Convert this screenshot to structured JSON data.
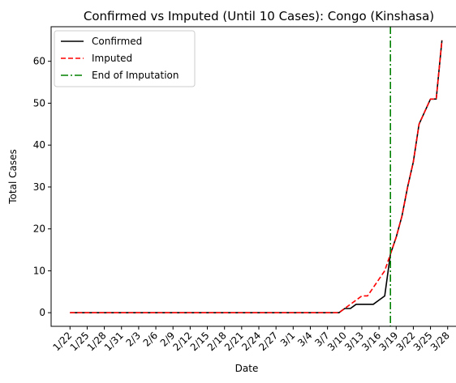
{
  "chart_data": {
    "type": "line",
    "title": "Confirmed vs Imputed (Until 10 Cases): Congo (Kinshasa)",
    "xlabel": "Date",
    "ylabel": "Total Cases",
    "x_tick_labels": [
      "1/22",
      "1/25",
      "1/28",
      "1/31",
      "2/3",
      "2/6",
      "2/9",
      "2/12",
      "2/15",
      "2/18",
      "2/21",
      "2/24",
      "2/27",
      "3/1",
      "3/4",
      "3/7",
      "3/10",
      "3/13",
      "3/16",
      "3/19",
      "3/22",
      "3/25",
      "3/28"
    ],
    "y_ticks": [
      0,
      10,
      20,
      30,
      40,
      50,
      60
    ],
    "x_start_date": "2020-01-22",
    "x_end_date": "2020-03-28",
    "ylim": [
      -3.25,
      68.25
    ],
    "grid": false,
    "legend_position": "upper left",
    "series": [
      {
        "name": "Confirmed",
        "color": "#000000",
        "style": "solid",
        "points": [
          [
            "3/9",
            0
          ],
          [
            "3/10",
            1
          ],
          [
            "3/11",
            1
          ],
          [
            "3/12",
            2
          ],
          [
            "3/13",
            2
          ],
          [
            "3/14",
            2
          ],
          [
            "3/15",
            2
          ],
          [
            "3/16",
            3
          ],
          [
            "3/17",
            4
          ],
          [
            "3/18",
            14
          ],
          [
            "3/19",
            18
          ],
          [
            "3/20",
            23
          ],
          [
            "3/21",
            30
          ],
          [
            "3/22",
            36
          ],
          [
            "3/23",
            45
          ],
          [
            "3/24",
            48
          ],
          [
            "3/25",
            51
          ],
          [
            "3/26",
            51
          ],
          [
            "3/27",
            65
          ]
        ]
      },
      {
        "name": "Imputed",
        "color": "#ff0000",
        "style": "dashed",
        "points": [
          [
            "3/9",
            0
          ],
          [
            "3/10",
            1
          ],
          [
            "3/11",
            2
          ],
          [
            "3/12",
            3
          ],
          [
            "3/13",
            4
          ],
          [
            "3/14",
            4
          ],
          [
            "3/15",
            6
          ],
          [
            "3/16",
            8
          ],
          [
            "3/17",
            10
          ],
          [
            "3/18",
            14
          ],
          [
            "3/19",
            18
          ],
          [
            "3/20",
            23
          ],
          [
            "3/21",
            30
          ],
          [
            "3/22",
            36
          ],
          [
            "3/23",
            45
          ],
          [
            "3/24",
            48
          ],
          [
            "3/25",
            51
          ],
          [
            "3/26",
            51
          ],
          [
            "3/27",
            65
          ]
        ]
      }
    ],
    "baseline": 0,
    "vline": {
      "name": "End of Imputation",
      "x": "3/18",
      "color": "#008000",
      "style": "dash-dot"
    }
  }
}
